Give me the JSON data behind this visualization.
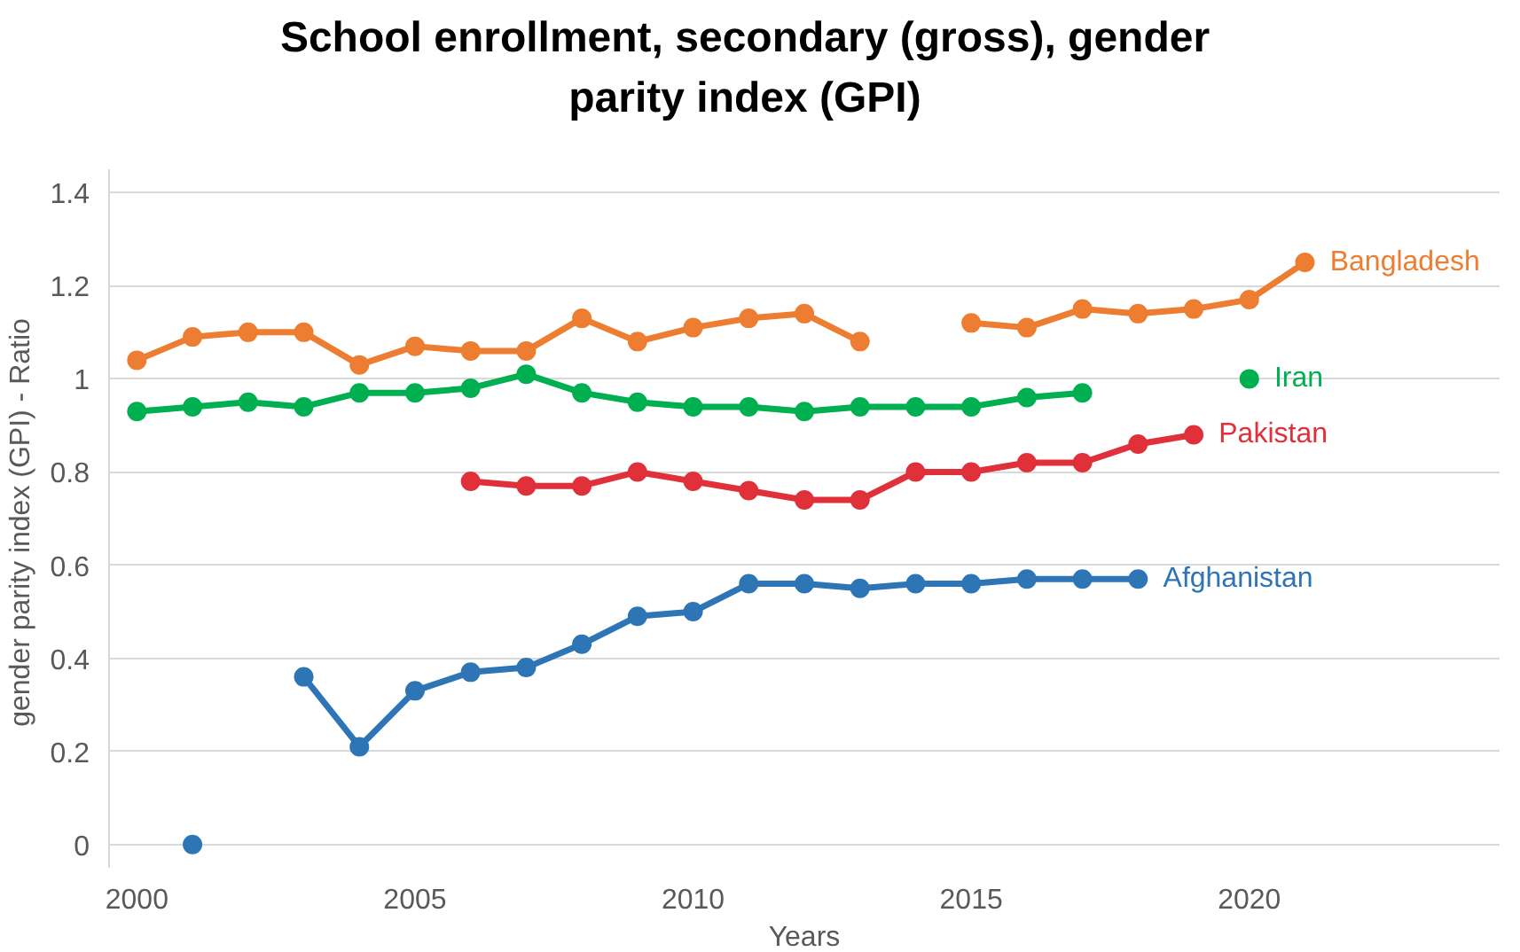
{
  "chart_data": {
    "type": "line",
    "title": "School enrollment, secondary (gross), gender parity index (GPI)",
    "xlabel": "Years",
    "ylabel": "gender parity index (GPI)  - Ratio",
    "x": [
      2000,
      2001,
      2002,
      2003,
      2004,
      2005,
      2006,
      2007,
      2008,
      2009,
      2010,
      2011,
      2012,
      2013,
      2014,
      2015,
      2016,
      2017,
      2018,
      2019,
      2020,
      2021
    ],
    "series": [
      {
        "name": "Bangladesh",
        "color": "#ed7d31",
        "values": [
          1.04,
          1.09,
          1.1,
          1.1,
          1.03,
          1.07,
          1.06,
          1.06,
          1.13,
          1.08,
          1.11,
          1.13,
          1.14,
          1.08,
          null,
          1.12,
          1.11,
          1.15,
          1.14,
          1.15,
          1.17,
          1.25
        ]
      },
      {
        "name": "Iran",
        "color": "#00b050",
        "values": [
          0.93,
          0.94,
          0.95,
          0.94,
          0.97,
          0.97,
          0.98,
          1.01,
          0.97,
          0.95,
          0.94,
          0.94,
          0.93,
          0.94,
          0.94,
          0.94,
          0.96,
          0.97,
          null,
          null,
          1.0,
          null
        ]
      },
      {
        "name": "Pakistan",
        "color": "#e0303a",
        "values": [
          null,
          null,
          null,
          null,
          null,
          null,
          0.78,
          0.77,
          0.77,
          0.8,
          0.78,
          0.76,
          0.74,
          0.74,
          0.8,
          0.8,
          0.82,
          0.82,
          0.86,
          0.88,
          null,
          null
        ]
      },
      {
        "name": "Afghanistan",
        "color": "#2e75b6",
        "values": [
          null,
          0.0,
          null,
          0.36,
          0.21,
          0.33,
          0.37,
          0.38,
          0.43,
          0.49,
          0.5,
          0.56,
          0.56,
          0.55,
          0.56,
          0.56,
          0.57,
          0.57,
          0.57,
          null,
          null,
          null
        ]
      }
    ],
    "xlim": [
      1999.5,
      2024.5
    ],
    "xticks": [
      2000,
      2005,
      2010,
      2015,
      2020
    ],
    "ylim": [
      -0.05,
      1.45
    ],
    "yticks": [
      0,
      0.2,
      0.4,
      0.6,
      0.8,
      1,
      1.2,
      1.4
    ],
    "grid": "y",
    "marker": "circle",
    "line_style": "solid"
  }
}
